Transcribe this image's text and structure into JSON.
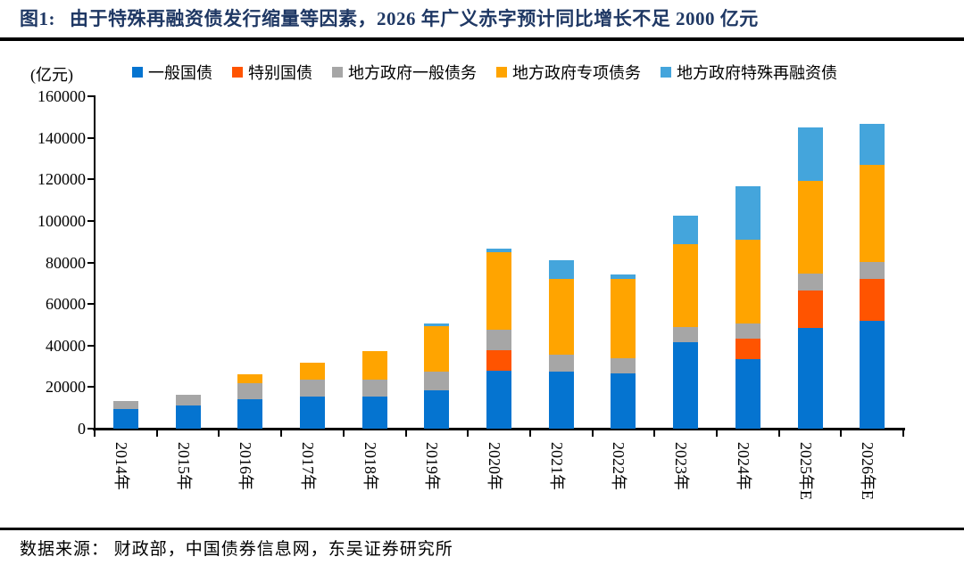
{
  "figure": {
    "tag": "图1:",
    "title": "由于特殊再融资债发行缩量等因素，2026 年广义赤字预计同比增长不足 2000 亿元",
    "unit_label": "(亿元)",
    "source": "数据来源： 财政部，中国债券信息网，东吴证券研究所"
  },
  "colors": {
    "title_text": "#1f3864",
    "axis": "#000000",
    "general_treasury_bond": "#0574d0",
    "special_treasury_bond": "#ff5400",
    "local_general_debt": "#a6a6a6",
    "local_special_debt": "#ffa400",
    "local_special_refinancing_bond": "#44a5dc"
  },
  "chart_data": {
    "type": "bar",
    "stacked": true,
    "title": "图1: 由于特殊再融资债发行缩量等因素，2026 年广义赤字预计同比增长不足 2000 亿元",
    "ylabel": "(亿元)",
    "ylim": [
      0,
      160000
    ],
    "y_ticks": [
      0,
      20000,
      40000,
      60000,
      80000,
      100000,
      120000,
      140000,
      160000
    ],
    "grid": false,
    "legend_position": "top",
    "categories": [
      "2014年",
      "2015年",
      "2016年",
      "2017年",
      "2018年",
      "2019年",
      "2020年",
      "2021年",
      "2022年",
      "2023年",
      "2024年",
      "2025年E",
      "2026年E"
    ],
    "series": [
      {
        "name": "一般国债",
        "color": "#0574d0",
        "values": [
          9500,
          11200,
          14000,
          15500,
          15500,
          18300,
          27800,
          27500,
          26500,
          41600,
          33400,
          48600,
          52000
        ]
      },
      {
        "name": "特别国债",
        "color": "#ff5400",
        "values": [
          0,
          0,
          0,
          0,
          0,
          0,
          10000,
          0,
          0,
          0,
          10000,
          18000,
          20000
        ]
      },
      {
        "name": "地方政府一般债务",
        "color": "#a6a6a6",
        "values": [
          4000,
          5000,
          8000,
          8300,
          8300,
          9300,
          9800,
          8200,
          7200,
          7200,
          7200,
          8000,
          8000
        ]
      },
      {
        "name": "地方政府专项债务",
        "color": "#ffa400",
        "values": [
          0,
          0,
          4000,
          8000,
          13500,
          21500,
          37500,
          36500,
          38500,
          40000,
          40400,
          44500,
          46800
        ]
      },
      {
        "name": "地方政府特殊再融资债",
        "color": "#44a5dc",
        "values": [
          0,
          0,
          0,
          0,
          0,
          1600,
          1500,
          9000,
          2000,
          13900,
          25600,
          26000,
          20000
        ]
      }
    ],
    "totals": [
      13500,
      16200,
      26000,
      31800,
      37300,
      50700,
      86600,
      81200,
      74200,
      102700,
      116600,
      145100,
      146800
    ]
  }
}
